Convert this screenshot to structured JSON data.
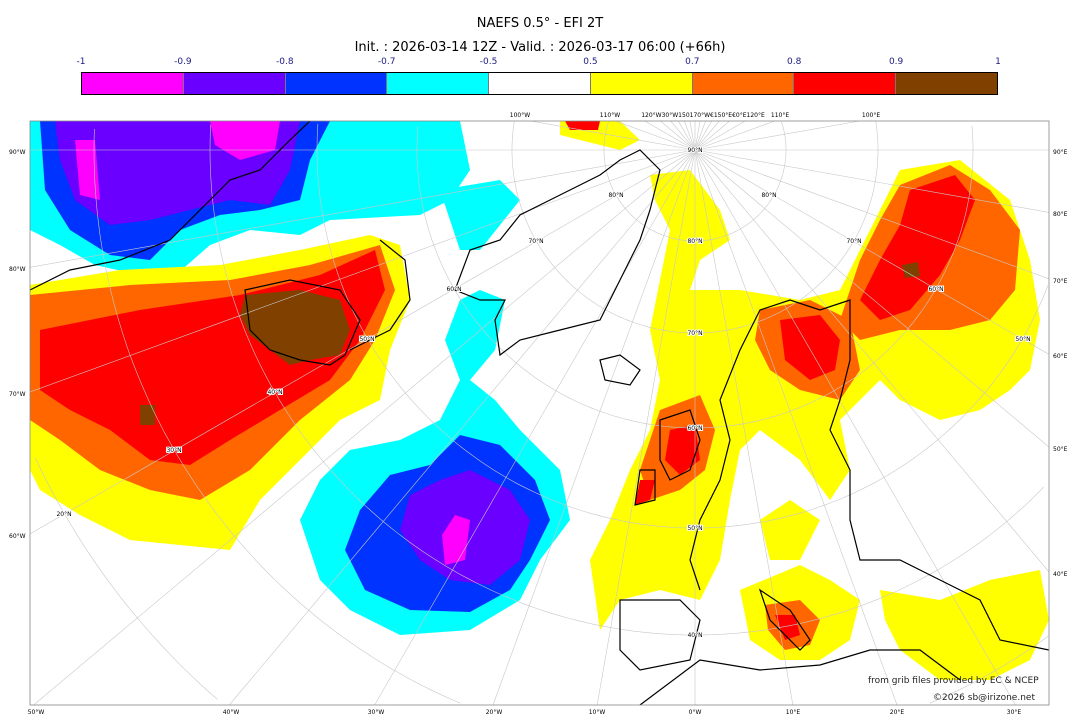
{
  "title": "NAEFS 0.5° - EFI 2T",
  "subtitle": "Init. : 2026-03-14 12Z - Valid. : 2026-03-17 06:00 (+66h)",
  "colorbar": {
    "labels": [
      "-1",
      "-0.9",
      "-0.8",
      "-0.7",
      "-0.5",
      "0.5",
      "0.7",
      "0.8",
      "0.9",
      "1"
    ],
    "colors": [
      "#ff00ff",
      "#6a00ff",
      "#0033ff",
      "#00ffff",
      "#ffffff",
      "#ffff00",
      "#ff6600",
      "#ff0000",
      "#804000"
    ]
  },
  "axes": {
    "left": [
      "90°W",
      "80°W",
      "70°W",
      "60°W"
    ],
    "right": [
      "90°E",
      "80°E",
      "70°E",
      "60°E",
      "50°E",
      "40°E"
    ],
    "bottom": [
      "50°W",
      "40°W",
      "30°W",
      "20°W",
      "10°W",
      "0°W",
      "10°E",
      "20°E",
      "30°E"
    ],
    "top": [
      "100°W",
      "110°W",
      "120°W30°W150170°W€150°E€0°E120°E",
      "110°E",
      "100°E"
    ],
    "parallels": [
      "90°N",
      "80°N",
      "80°N",
      "80°N",
      "70°N",
      "70°N",
      "70°N",
      "60°N",
      "60°N",
      "60°N",
      "50°N",
      "50°N",
      "50°N",
      "40°N",
      "40°N",
      "30°N",
      "20°N"
    ]
  },
  "credits": {
    "source": "from grib files provided by EC & NCEP",
    "copyright": "©2026 sb@irizone.net"
  }
}
